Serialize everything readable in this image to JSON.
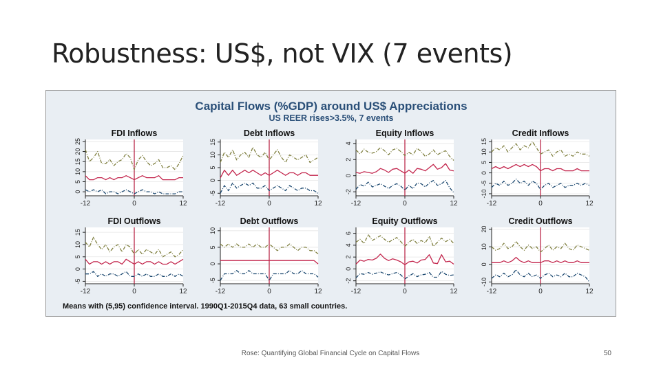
{
  "slide": {
    "title": "Robustness: US$, not VIX (7 events)",
    "footer": "Rose: Quantifying Global Financial Cycle on Capital Flows",
    "page_number": "50"
  },
  "colors": {
    "upper_band": "#7f7f3f",
    "mean": "#c3264d",
    "lower_band": "#1a476f",
    "event_line": "#b5173b",
    "title_blue": "#2a4f78",
    "panel_bg": "#ffffff",
    "outer_bg": "#e9eef3"
  },
  "chart_data": {
    "type": "line",
    "title": "Capital Flows (%GDP) around US$ Appreciations",
    "subtitle": "US REER rises>3.5%, 7 events",
    "note": "Means with (5,95) confidence interval. 1990Q1-2015Q4 data, 63 small countries.",
    "x": [
      -12,
      -11,
      -10,
      -9,
      -8,
      -7,
      -6,
      -5,
      -4,
      -3,
      -2,
      -1,
      0,
      1,
      2,
      3,
      4,
      5,
      6,
      7,
      8,
      9,
      10,
      11,
      12
    ],
    "x_tick_labels": [
      "-12",
      "0",
      "12"
    ],
    "event_x": 0,
    "panels": [
      {
        "title": "FDI Inflows",
        "ylim": [
          -2,
          26
        ],
        "y_ticks": [
          0,
          5,
          10,
          15,
          20,
          25
        ],
        "y_tick_labels": [
          "0",
          "5",
          "10",
          "15",
          "20",
          "25"
        ],
        "series": [
          {
            "values": [
              21,
              15,
              17,
              20,
              14,
              14,
              16,
              13,
              15,
              16,
              19,
              17,
              11,
              16,
              18,
              15,
              13,
              14,
              16,
              12,
              12,
              13,
              11,
              14,
              18
            ]
          },
          {
            "values": [
              8,
              6,
              6,
              7,
              7,
              6,
              7,
              6,
              7,
              7,
              8,
              7,
              6,
              7,
              8,
              7,
              7,
              7,
              8,
              6,
              6,
              6,
              6,
              7,
              7
            ]
          },
          {
            "values": [
              1,
              0,
              1,
              0,
              1,
              -1,
              0,
              0,
              -1,
              0,
              1,
              0,
              -1,
              0,
              1,
              0,
              0,
              -1,
              0,
              -1,
              -1,
              -1,
              -1,
              0,
              0
            ]
          }
        ]
      },
      {
        "title": "Debt Inflows",
        "ylim": [
          -6,
          16
        ],
        "y_ticks": [
          -5,
          0,
          5,
          10,
          15
        ],
        "y_tick_labels": [
          "-5",
          "0",
          "5",
          "10",
          "15"
        ],
        "series": [
          {
            "values": [
              7,
              11,
              9,
              12,
              8,
              10,
              11,
              9,
              13,
              10,
              9,
              11,
              8,
              10,
              12,
              9,
              7,
              10,
              9,
              8,
              9,
              10,
              7,
              8,
              9
            ]
          },
          {
            "values": [
              1,
              4,
              2,
              4,
              2,
              3,
              4,
              3,
              4,
              3,
              2,
              3,
              2,
              3,
              4,
              3,
              2,
              3,
              3,
              2,
              3,
              3,
              2,
              2,
              2
            ]
          },
          {
            "values": [
              -5,
              -2,
              -4,
              -1,
              -3,
              -2,
              -1,
              -2,
              -1,
              -3,
              -3,
              -2,
              -4,
              -3,
              -2,
              -3,
              -4,
              -2,
              -3,
              -4,
              -3,
              -3,
              -4,
              -4,
              -5
            ]
          }
        ]
      },
      {
        "title": "Equity Inflows",
        "ylim": [
          -2.5,
          4.5
        ],
        "y_ticks": [
          -2,
          0,
          2,
          4
        ],
        "y_tick_labels": [
          "-2",
          "0",
          "2",
          "4"
        ],
        "series": [
          {
            "values": [
              3.2,
              2.7,
              3.3,
              2.9,
              2.8,
              3.0,
              3.5,
              3.1,
              2.6,
              3.2,
              3.4,
              3.0,
              2.5,
              2.9,
              2.6,
              3.4,
              3.0,
              2.4,
              2.7,
              3.2,
              2.6,
              2.9,
              3.1,
              2.4,
              1.9
            ]
          },
          {
            "values": [
              0.4,
              0.3,
              0.5,
              0.4,
              0.3,
              0.5,
              0.9,
              0.7,
              0.4,
              0.8,
              0.9,
              0.6,
              0.3,
              0.7,
              0.3,
              0.9,
              0.8,
              0.6,
              1.0,
              1.4,
              0.8,
              1.0,
              1.5,
              0.7,
              0.6
            ]
          },
          {
            "values": [
              -1.7,
              -1.1,
              -1.3,
              -0.8,
              -1.4,
              -1.2,
              -1.0,
              -1.3,
              -1.6,
              -1.2,
              -1.0,
              -1.3,
              -1.8,
              -1.2,
              -1.6,
              -0.9,
              -1.0,
              -1.4,
              -0.9,
              -0.6,
              -1.2,
              -1.0,
              -0.6,
              -1.5,
              -2.1
            ]
          }
        ]
      },
      {
        "title": "Credit Inflows",
        "ylim": [
          -11,
          16
        ],
        "y_ticks": [
          -10,
          -5,
          0,
          5,
          10,
          15
        ],
        "y_tick_labels": [
          "-10",
          "-5",
          "0",
          "5",
          "10",
          "15"
        ],
        "series": [
          {
            "values": [
              10,
              12,
              11,
              13,
              10,
              12,
              14,
              11,
              13,
              12,
              15,
              12,
              9,
              10,
              11,
              8,
              10,
              11,
              8,
              9,
              8,
              10,
              9,
              9,
              8
            ]
          },
          {
            "values": [
              2,
              3,
              2,
              3,
              2,
              3,
              4,
              3,
              4,
              3,
              4,
              3,
              1,
              2,
              2,
              1,
              2,
              2,
              1,
              1,
              1,
              2,
              1,
              1,
              1
            ]
          },
          {
            "values": [
              -7,
              -5,
              -6,
              -4,
              -6,
              -5,
              -3,
              -5,
              -4,
              -6,
              -4,
              -5,
              -8,
              -6,
              -5,
              -7,
              -6,
              -5,
              -7,
              -6,
              -6,
              -5,
              -6,
              -5,
              -6
            ]
          }
        ]
      },
      {
        "title": "FDI Outflows",
        "ylim": [
          -6,
          17
        ],
        "y_ticks": [
          -5,
          0,
          5,
          10,
          15
        ],
        "y_tick_labels": [
          "-5",
          "0",
          "5",
          "10",
          "15"
        ],
        "series": [
          {
            "values": [
              11,
              9,
              13,
              10,
              8,
              10,
              7,
              9,
              10,
              7,
              10,
              9,
              6,
              8,
              6,
              8,
              7,
              6,
              8,
              5,
              6,
              7,
              5,
              6,
              8
            ]
          },
          {
            "values": [
              4,
              2,
              3,
              3,
              2,
              3,
              2,
              3,
              3,
              2,
              4,
              3,
              2,
              3,
              2,
              3,
              3,
              2,
              3,
              2,
              2,
              3,
              2,
              3,
              4
            ]
          },
          {
            "values": [
              -2,
              -2,
              -1,
              -3,
              -2,
              -3,
              -2,
              -2,
              -3,
              -2,
              -1,
              -3,
              -3,
              -2,
              -3,
              -2,
              -3,
              -3,
              -2,
              -3,
              -3,
              -2,
              -3,
              -2,
              -3
            ]
          }
        ]
      },
      {
        "title": "Debt Outflows",
        "ylim": [
          -6,
          11
        ],
        "y_ticks": [
          -5,
          0,
          5,
          10
        ],
        "y_tick_labels": [
          "-5",
          "0",
          "5",
          "10"
        ],
        "series": [
          {
            "values": [
              6,
              5,
              6,
              5,
              6,
              5,
              5,
              6,
              5,
              6,
              5,
              5,
              6,
              5,
              4,
              5,
              5,
              6,
              5,
              4,
              5,
              5,
              4,
              4,
              3
            ]
          },
          {
            "values": [
              1,
              1,
              1,
              1,
              1,
              1,
              1,
              1,
              1,
              1,
              1,
              1,
              1,
              1,
              1,
              1,
              1,
              1,
              1,
              1,
              1,
              1,
              1,
              1,
              0
            ]
          },
          {
            "values": [
              -5,
              -3,
              -3,
              -3,
              -2,
              -3,
              -3,
              -2,
              -3,
              -3,
              -3,
              -3,
              -5,
              -3,
              -3,
              -3,
              -3,
              -2,
              -3,
              -3,
              -2,
              -3,
              -3,
              -3,
              -4
            ]
          }
        ]
      },
      {
        "title": "Equity Outflows",
        "ylim": [
          -2.5,
          7
        ],
        "y_ticks": [
          -2,
          0,
          2,
          4,
          6
        ],
        "y_tick_labels": [
          "-2",
          "0",
          "2",
          "4",
          "6"
        ],
        "series": [
          {
            "values": [
              4.5,
              5.0,
              4.3,
              5.8,
              4.8,
              5.2,
              5.6,
              5.0,
              4.5,
              4.9,
              5.3,
              4.6,
              3.8,
              4.5,
              5.0,
              4.3,
              4.8,
              4.4,
              5.5,
              3.8,
              4.5,
              5.2,
              4.6,
              5.0,
              4.3
            ]
          },
          {
            "values": [
              0.8,
              1.5,
              1.3,
              1.6,
              1.5,
              1.8,
              2.5,
              1.8,
              1.4,
              1.7,
              1.5,
              1.2,
              0.7,
              1.2,
              1.3,
              1.0,
              1.5,
              1.6,
              2.4,
              1.0,
              0.9,
              2.4,
              1.2,
              1.3,
              0.8
            ]
          },
          {
            "values": [
              -1.5,
              -0.8,
              -0.9,
              -0.6,
              -0.9,
              -0.7,
              -0.5,
              -0.8,
              -1.0,
              -0.8,
              -0.6,
              -1.0,
              -1.7,
              -1.2,
              -0.8,
              -1.3,
              -1.0,
              -0.9,
              -0.6,
              -1.4,
              -1.4,
              -0.4,
              -0.9,
              -1.1,
              -1.0
            ]
          }
        ]
      },
      {
        "title": "Credit Outflows",
        "ylim": [
          -11,
          21
        ],
        "y_ticks": [
          -10,
          0,
          10,
          20
        ],
        "y_tick_labels": [
          "-10",
          "0",
          "10",
          "20"
        ],
        "series": [
          {
            "values": [
              10,
              8,
              9,
              12,
              9,
              10,
              13,
              10,
              8,
              11,
              9,
              10,
              7,
              9,
              11,
              8,
              10,
              9,
              12,
              9,
              8,
              11,
              10,
              9,
              8
            ]
          },
          {
            "values": [
              1,
              1,
              1,
              2,
              1,
              2,
              4,
              2,
              1,
              2,
              1,
              1,
              1,
              2,
              2,
              1,
              2,
              1,
              2,
              1,
              1,
              2,
              1,
              1,
              1
            ]
          },
          {
            "values": [
              -8,
              -6,
              -7,
              -5,
              -7,
              -6,
              -3,
              -6,
              -7,
              -5,
              -7,
              -6,
              -8,
              -6,
              -5,
              -7,
              -6,
              -7,
              -5,
              -7,
              -7,
              -5,
              -6,
              -7,
              -10
            ]
          }
        ]
      }
    ]
  }
}
